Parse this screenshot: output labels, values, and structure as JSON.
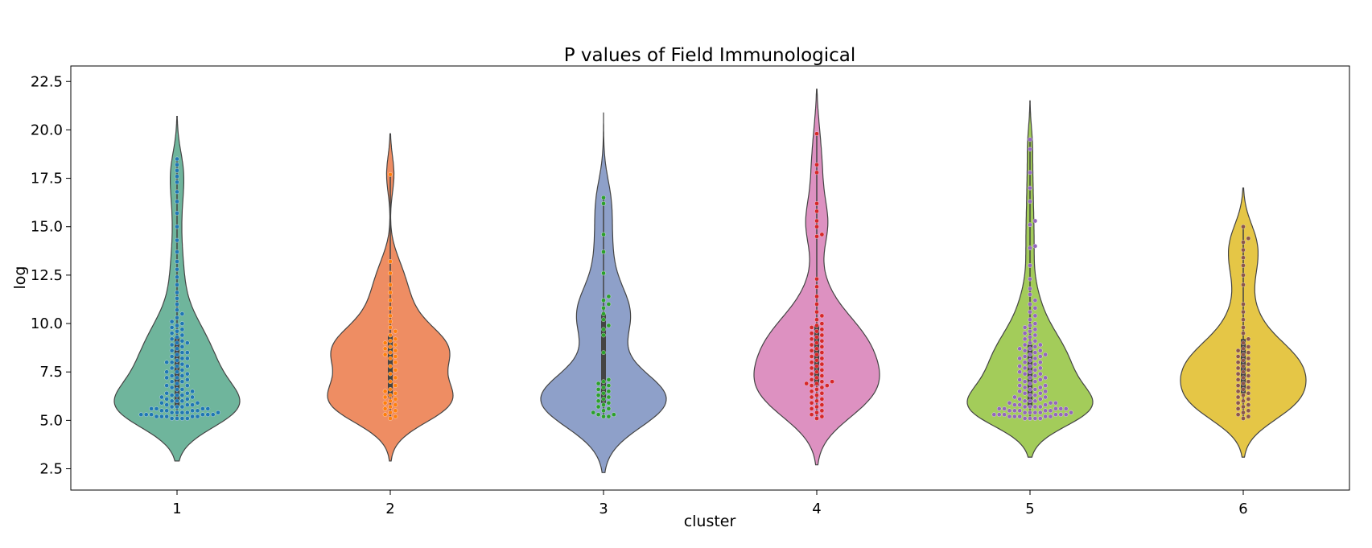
{
  "chart_data": {
    "type": "violin",
    "title": "P values of Field Immunological",
    "xlabel": "cluster",
    "ylabel": "log",
    "ylim": [
      1.4,
      23.3
    ],
    "yticks": [
      2.5,
      5.0,
      7.5,
      10.0,
      12.5,
      15.0,
      17.5,
      20.0,
      22.5
    ],
    "ytick_labels": [
      "2.5",
      "5.0",
      "7.5",
      "10.0",
      "12.5",
      "15.0",
      "17.5",
      "20.0",
      "22.5"
    ],
    "categories": [
      "1",
      "2",
      "3",
      "4",
      "5",
      "6"
    ],
    "grid": false,
    "series": [
      {
        "category": "1",
        "violin_color": "#6fb59c",
        "point_color": "#1f77b4",
        "violin_max": 20.7,
        "violin_min": 2.9,
        "points": [
          5.1,
          5.1,
          5.1,
          5.1,
          5.2,
          5.2,
          5.2,
          5.2,
          5.2,
          5.3,
          5.3,
          5.3,
          5.3,
          5.3,
          5.3,
          5.4,
          5.4,
          5.4,
          5.4,
          5.4,
          5.5,
          5.5,
          5.5,
          5.5,
          5.6,
          5.6,
          5.6,
          5.6,
          5.7,
          5.7,
          5.7,
          5.8,
          5.8,
          5.8,
          5.9,
          5.9,
          6.0,
          6.0,
          6.0,
          6.1,
          6.1,
          6.2,
          6.2,
          6.3,
          6.3,
          6.3,
          6.4,
          6.4,
          6.5,
          6.6,
          6.6,
          6.7,
          6.8,
          6.8,
          6.9,
          7.0,
          7.0,
          7.1,
          7.2,
          7.2,
          7.3,
          7.3,
          7.4,
          7.5,
          7.5,
          7.6,
          7.7,
          7.8,
          7.8,
          7.9,
          8.0,
          8.0,
          8.1,
          8.2,
          8.2,
          8.3,
          8.4,
          8.5,
          8.5,
          8.6,
          8.7,
          8.8,
          8.9,
          9.0,
          9.0,
          9.1,
          9.2,
          9.3,
          9.4,
          9.5,
          9.6,
          9.7,
          9.8,
          9.9,
          10.0,
          10.1,
          10.3,
          10.5,
          10.7,
          11.0,
          11.3,
          11.6,
          12.0,
          12.4,
          12.8,
          13.2,
          13.7,
          14.3,
          15.0,
          15.7,
          16.3,
          16.8,
          17.3,
          17.6,
          17.9,
          18.2,
          18.5
        ]
      },
      {
        "category": "2",
        "violin_color": "#ee8d63",
        "point_color": "#ff7f0e",
        "violin_max": 19.8,
        "violin_min": 2.9,
        "points": [
          5.1,
          5.2,
          5.3,
          5.4,
          5.5,
          5.6,
          5.7,
          5.8,
          5.9,
          6.0,
          6.1,
          6.2,
          6.3,
          6.4,
          6.5,
          6.6,
          6.8,
          7.0,
          7.2,
          7.4,
          7.6,
          7.8,
          8.0,
          8.2,
          8.3,
          8.4,
          8.5,
          8.6,
          8.7,
          8.8,
          8.9,
          9.0,
          9.1,
          9.2,
          9.4,
          9.6,
          9.8,
          10.1,
          10.4,
          10.8,
          11.2,
          11.6,
          12.0,
          12.6,
          13.2,
          17.7
        ]
      },
      {
        "category": "3",
        "violin_color": "#8ea0c9",
        "point_color": "#2ca02c",
        "violin_max": 20.9,
        "violin_min": 2.3,
        "points": [
          5.2,
          5.2,
          5.3,
          5.3,
          5.4,
          5.5,
          5.6,
          5.7,
          5.8,
          5.9,
          6.0,
          6.1,
          6.2,
          6.3,
          6.4,
          6.5,
          6.6,
          6.7,
          6.8,
          6.9,
          7.0,
          7.1,
          8.5,
          9.4,
          9.7,
          9.9,
          10.2,
          10.5,
          10.8,
          11.0,
          11.2,
          11.4,
          12.6,
          13.7,
          14.6,
          16.2,
          16.5
        ]
      },
      {
        "category": "4",
        "violin_color": "#dd91c1",
        "point_color": "#d62728",
        "violin_max": 22.1,
        "violin_min": 2.7,
        "points": [
          5.1,
          5.2,
          5.3,
          5.4,
          5.5,
          5.6,
          5.7,
          5.8,
          5.9,
          6.0,
          6.1,
          6.2,
          6.3,
          6.4,
          6.5,
          6.6,
          6.7,
          6.8,
          6.8,
          6.9,
          6.9,
          7.0,
          7.0,
          7.1,
          7.2,
          7.3,
          7.4,
          7.5,
          7.6,
          7.7,
          7.8,
          7.9,
          8.0,
          8.1,
          8.2,
          8.3,
          8.4,
          8.5,
          8.6,
          8.7,
          8.8,
          8.9,
          9.0,
          9.1,
          9.2,
          9.3,
          9.4,
          9.5,
          9.6,
          9.7,
          9.8,
          9.9,
          10.0,
          10.2,
          10.4,
          10.6,
          11.0,
          11.4,
          11.9,
          12.3,
          14.5,
          14.6,
          15.0,
          15.3,
          15.8,
          16.2,
          17.8,
          18.2,
          19.8
        ]
      },
      {
        "category": "5",
        "violin_color": "#a3cc5a",
        "point_color": "#9467bd",
        "violin_max": 21.5,
        "violin_min": 3.1,
        "points": [
          5.1,
          5.1,
          5.1,
          5.1,
          5.2,
          5.2,
          5.2,
          5.2,
          5.2,
          5.3,
          5.3,
          5.3,
          5.3,
          5.3,
          5.3,
          5.4,
          5.4,
          5.4,
          5.4,
          5.4,
          5.5,
          5.5,
          5.5,
          5.5,
          5.5,
          5.6,
          5.6,
          5.6,
          5.6,
          5.6,
          5.7,
          5.7,
          5.7,
          5.7,
          5.8,
          5.8,
          5.8,
          5.9,
          5.9,
          5.9,
          6.0,
          6.0,
          6.0,
          6.1,
          6.1,
          6.2,
          6.2,
          6.3,
          6.3,
          6.4,
          6.4,
          6.5,
          6.5,
          6.6,
          6.6,
          6.7,
          6.7,
          6.8,
          6.8,
          6.9,
          7.0,
          7.0,
          7.1,
          7.1,
          7.2,
          7.2,
          7.3,
          7.4,
          7.4,
          7.5,
          7.5,
          7.6,
          7.7,
          7.7,
          7.8,
          7.8,
          7.9,
          8.0,
          8.0,
          8.1,
          8.2,
          8.2,
          8.3,
          8.3,
          8.4,
          8.4,
          8.5,
          8.6,
          8.6,
          8.7,
          8.7,
          8.8,
          8.9,
          8.9,
          9.0,
          9.1,
          9.2,
          9.3,
          9.4,
          9.5,
          9.6,
          9.7,
          9.8,
          9.9,
          10.0,
          10.2,
          10.4,
          10.6,
          10.8,
          11.0,
          11.2,
          11.5,
          11.8,
          12.3,
          13.0,
          13.9,
          14.0,
          15.1,
          15.3,
          16.3,
          17.0,
          17.8,
          19.0,
          19.5
        ]
      },
      {
        "category": "6",
        "violin_color": "#e5c646",
        "point_color": "#8c564b",
        "violin_max": 17.0,
        "violin_min": 3.1,
        "points": [
          5.1,
          5.2,
          5.3,
          5.4,
          5.5,
          5.6,
          5.7,
          5.8,
          5.9,
          6.0,
          6.1,
          6.2,
          6.3,
          6.4,
          6.5,
          6.6,
          6.7,
          6.8,
          6.9,
          7.0,
          7.1,
          7.2,
          7.3,
          7.4,
          7.5,
          7.6,
          7.7,
          7.8,
          7.9,
          8.0,
          8.1,
          8.2,
          8.3,
          8.4,
          8.5,
          8.6,
          8.7,
          8.8,
          9.0,
          9.2,
          9.5,
          9.8,
          10.2,
          10.6,
          11.0,
          12.0,
          12.5,
          13.0,
          13.4,
          13.8,
          14.2,
          14.4,
          15.0
        ]
      }
    ]
  }
}
